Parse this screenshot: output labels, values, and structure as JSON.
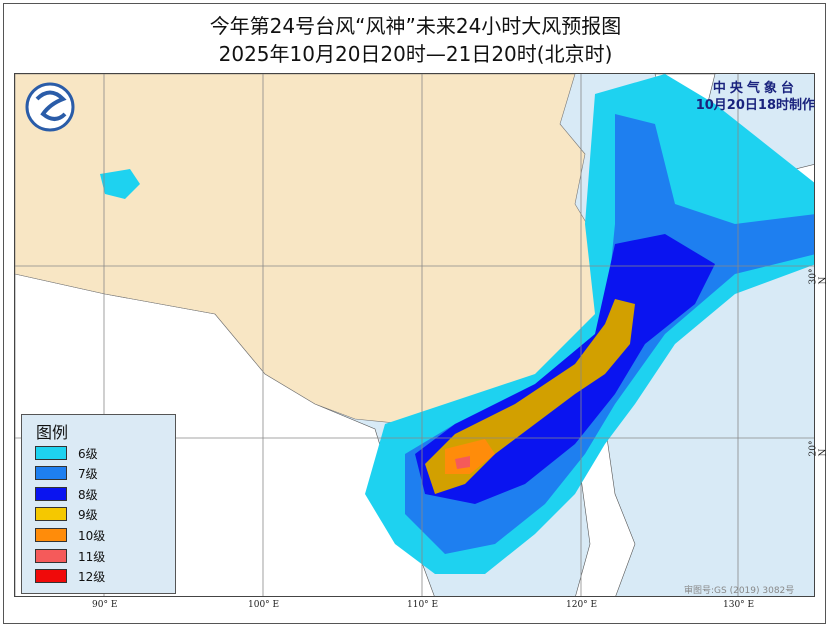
{
  "title": "今年第24号台风“风神”未来24小时大风预报图",
  "subtitle": "2025年10月20日20时—21日20时(北京时)",
  "agency": {
    "name": "中央气象台",
    "issued": "10月20日18时制作"
  },
  "legend": {
    "title": "图例",
    "items": [
      {
        "label": "6级",
        "color": "#1ed2f0"
      },
      {
        "label": "7级",
        "color": "#1e7ff0"
      },
      {
        "label": "8级",
        "color": "#0a14f0"
      },
      {
        "label": "9级",
        "color": "#f5c800"
      },
      {
        "label": "10级",
        "color": "#ff8c0a"
      },
      {
        "label": "11级",
        "color": "#f55a5a"
      },
      {
        "label": "12级",
        "color": "#f00a0a"
      }
    ]
  },
  "axes": {
    "lon_labels": [
      "90° E",
      "100° E",
      "110° E",
      "120° E",
      "130° E"
    ],
    "lat_labels": [
      "30° N",
      "20° N"
    ]
  },
  "approval": "审图号:GS (2019) 3082号",
  "colors": {
    "land": "#f8e6c4",
    "sea": "#d8eaf6",
    "foreign_land": "#ffffff"
  }
}
